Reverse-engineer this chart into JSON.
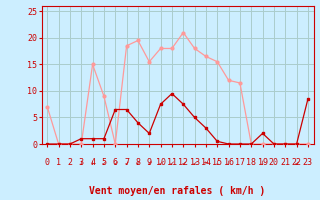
{
  "x": [
    0,
    1,
    2,
    3,
    4,
    5,
    6,
    7,
    8,
    9,
    10,
    11,
    12,
    13,
    14,
    15,
    16,
    17,
    18,
    19,
    20,
    21,
    22,
    23
  ],
  "rafales": [
    7,
    0,
    0,
    0,
    15,
    9,
    0,
    18.5,
    19.5,
    15.5,
    18,
    18,
    21,
    18,
    16.5,
    15.5,
    12,
    11.5,
    0,
    0,
    0,
    0,
    0,
    0
  ],
  "moyen": [
    0,
    0,
    0,
    1,
    1,
    1,
    6.5,
    6.5,
    4,
    2,
    7.5,
    9.5,
    7.5,
    5,
    3,
    0.5,
    0,
    0,
    0,
    2,
    0,
    0,
    0,
    8.5
  ],
  "bg_color": "#cceeff",
  "grid_color": "#aacccc",
  "line_color_light": "#ff9999",
  "line_color_dark": "#cc0000",
  "xlabel": "Vent moyen/en rafales ( km/h )",
  "xlim": [
    -0.5,
    23.5
  ],
  "ylim": [
    0,
    26
  ],
  "yticks": [
    0,
    5,
    10,
    15,
    20,
    25
  ],
  "xticks": [
    0,
    1,
    2,
    3,
    4,
    5,
    6,
    7,
    8,
    9,
    10,
    11,
    12,
    13,
    14,
    15,
    16,
    17,
    18,
    19,
    20,
    21,
    22,
    23
  ],
  "label_fontsize": 7,
  "tick_fontsize": 6
}
